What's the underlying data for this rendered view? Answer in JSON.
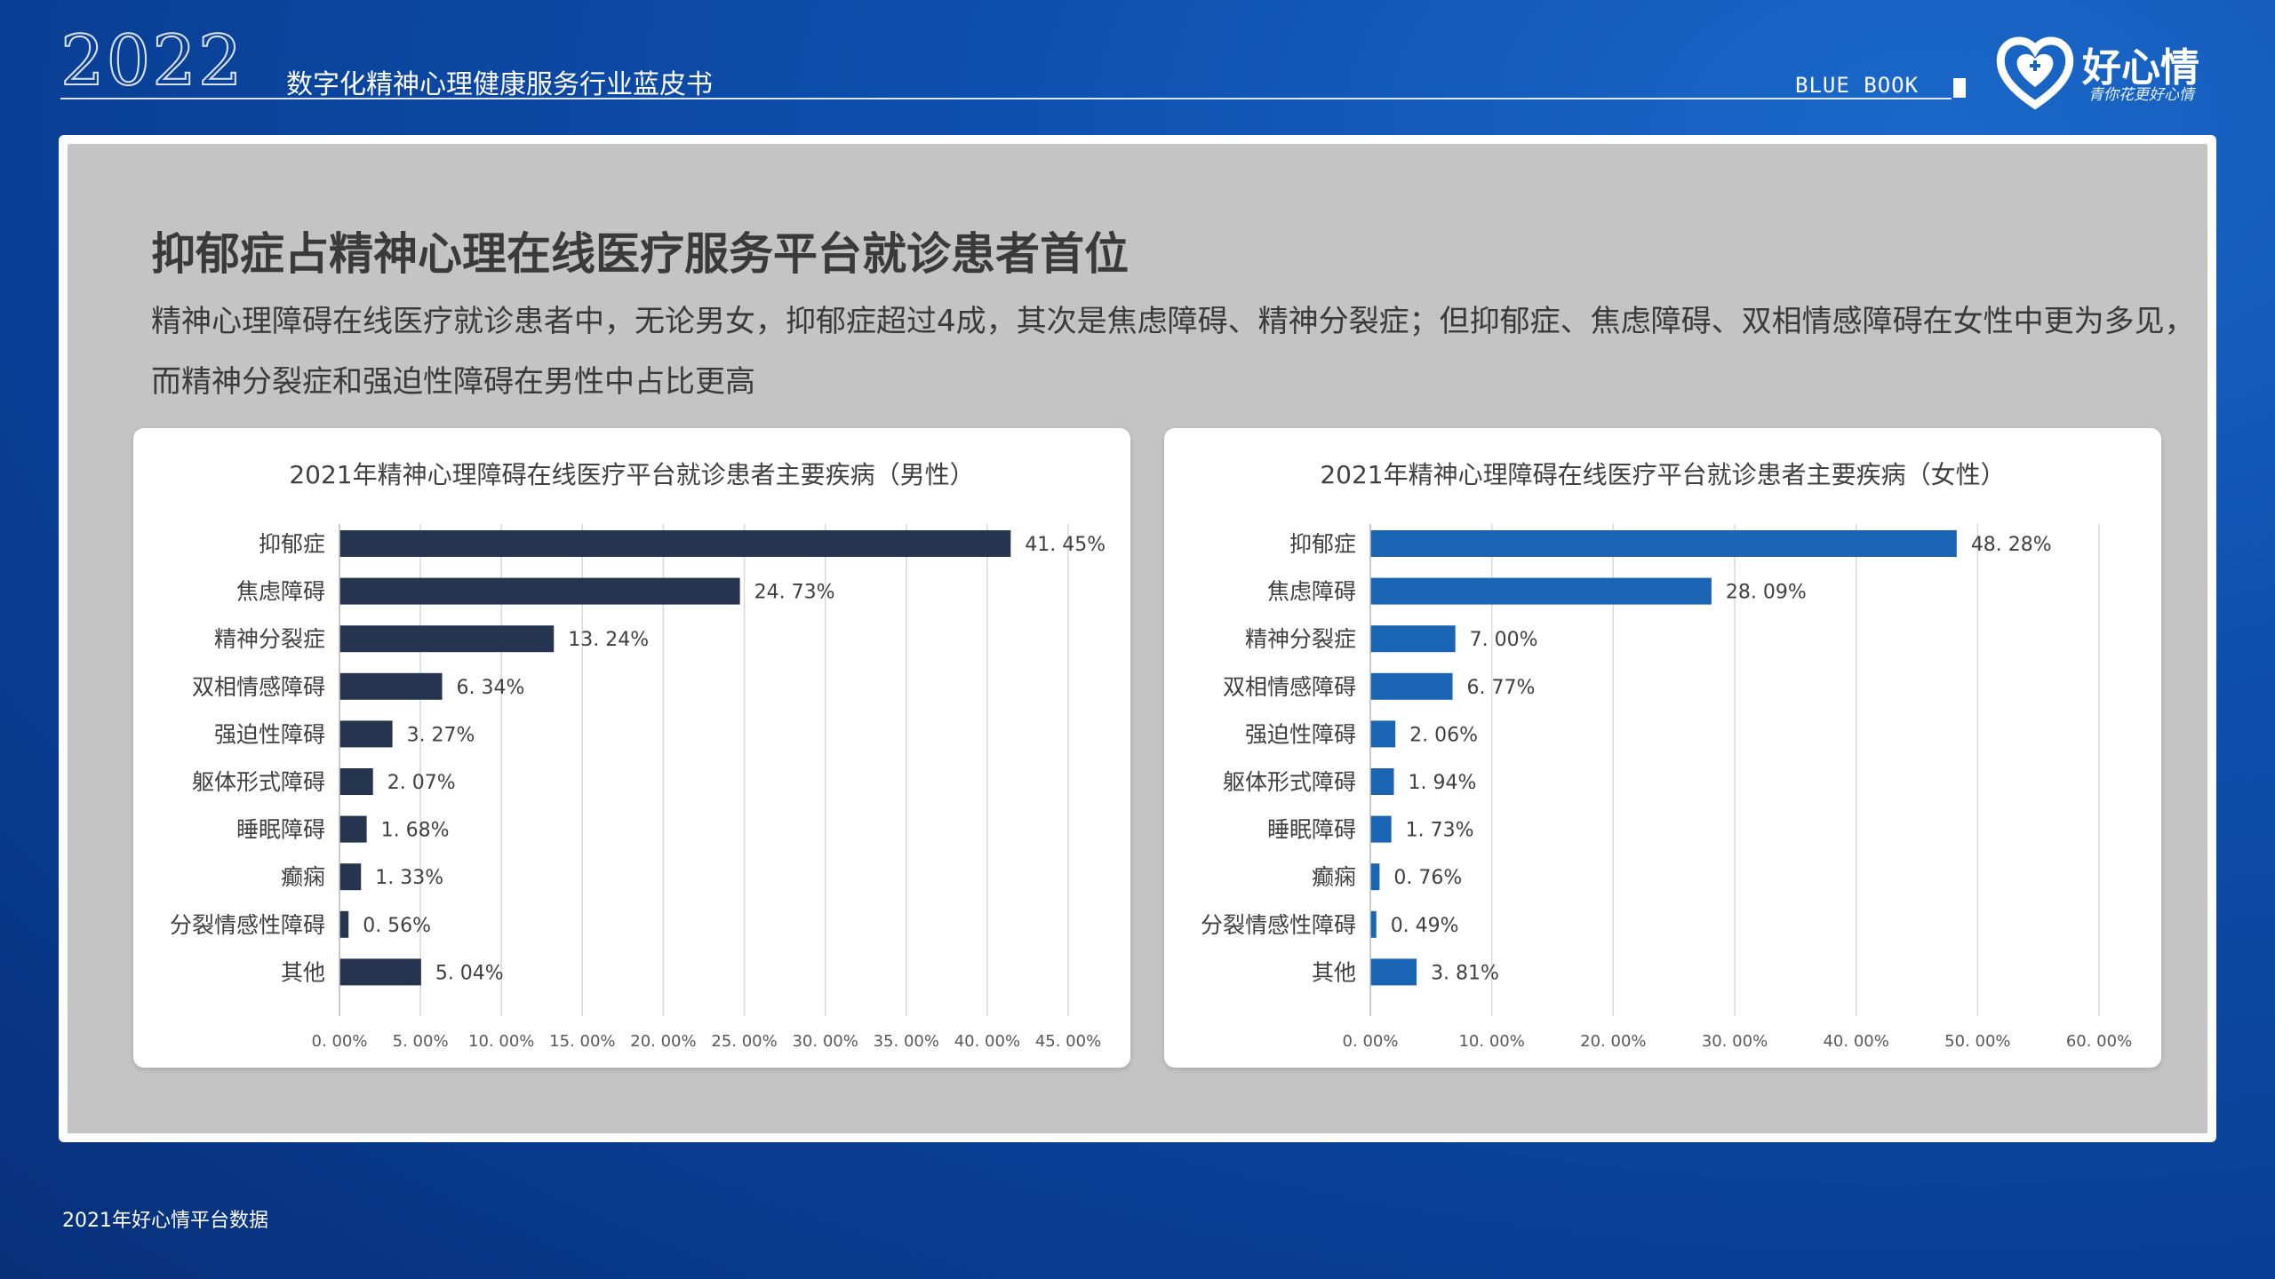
{
  "header": {
    "year": "2022",
    "title": "数字化精神心理健康服务行业蓝皮书",
    "blue_book": "BLUE BOOK",
    "logo_name": "好心情",
    "logo_slogan": "青你花更好心情"
  },
  "main": {
    "headline": "抑郁症占精神心理在线医疗服务平台就诊患者首位",
    "subtext": "精神心理障碍在线医疗就诊患者中，无论男女，抑郁症超过4成，其次是焦虑障碍、精神分裂症；但抑郁症、焦虑障碍、双相情感障碍在女性中更为多见，而精神分裂症和强迫性障碍在男性中占比更高"
  },
  "footer": {
    "source": "2021年好心情平台数据"
  },
  "colors": {
    "male_bar": "#253550",
    "female_bar": "#1a64b4",
    "grid": "#d9d9d9"
  },
  "chart_data": [
    {
      "type": "bar",
      "orientation": "horizontal",
      "title": "2021年精神心理障碍在线医疗平台就诊患者主要疾病（男性）",
      "categories": [
        "抑郁症",
        "焦虑障碍",
        "精神分裂症",
        "双相情感障碍",
        "强迫性障碍",
        "躯体形式障碍",
        "睡眠障碍",
        "癫痫",
        "分裂情感性障碍",
        "其他"
      ],
      "values": [
        41.45,
        24.73,
        13.24,
        6.34,
        3.27,
        2.07,
        1.68,
        1.33,
        0.56,
        5.04
      ],
      "value_labels": [
        "41. 45%",
        "24. 73%",
        "13. 24%",
        "6. 34%",
        "3. 27%",
        "2. 07%",
        "1. 68%",
        "1. 33%",
        "0. 56%",
        "5. 04%"
      ],
      "xlim": [
        0,
        45
      ],
      "ticks": [
        0,
        5,
        10,
        15,
        20,
        25,
        30,
        35,
        40,
        45
      ],
      "tick_labels": [
        "0. 00%",
        "5. 00%",
        "10. 00%",
        "15. 00%",
        "20. 00%",
        "25. 00%",
        "30. 00%",
        "35. 00%",
        "40. 00%",
        "45. 00%"
      ],
      "grid": true,
      "color": "#253550"
    },
    {
      "type": "bar",
      "orientation": "horizontal",
      "title": "2021年精神心理障碍在线医疗平台就诊患者主要疾病（女性）",
      "categories": [
        "抑郁症",
        "焦虑障碍",
        "精神分裂症",
        "双相情感障碍",
        "强迫性障碍",
        "躯体形式障碍",
        "睡眠障碍",
        "癫痫",
        "分裂情感性障碍",
        "其他"
      ],
      "values": [
        48.28,
        28.09,
        7.0,
        6.77,
        2.06,
        1.94,
        1.73,
        0.76,
        0.49,
        3.81
      ],
      "value_labels": [
        "48. 28%",
        "28. 09%",
        "7. 00%",
        "6. 77%",
        "2. 06%",
        "1. 94%",
        "1. 73%",
        "0. 76%",
        "0. 49%",
        "3. 81%"
      ],
      "xlim": [
        0,
        60
      ],
      "ticks": [
        0,
        10,
        20,
        30,
        40,
        50,
        60
      ],
      "tick_labels": [
        "0. 00%",
        "10. 00%",
        "20. 00%",
        "30. 00%",
        "40. 00%",
        "50. 00%",
        "60. 00%"
      ],
      "grid": true,
      "color": "#1a64b4"
    }
  ]
}
